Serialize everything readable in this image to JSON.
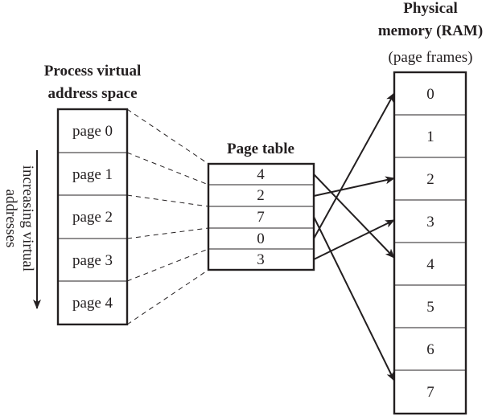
{
  "virtual_space": {
    "title_line1": "Process virtual",
    "title_line2": "address space",
    "pages": [
      "page 0",
      "page 1",
      "page 2",
      "page 3",
      "page 4"
    ],
    "axis_label_line1": "increasing virtual",
    "axis_label_line2": "addresses"
  },
  "page_table": {
    "title": "Page table",
    "entries": [
      "4",
      "2",
      "7",
      "0",
      "3"
    ]
  },
  "physical_memory": {
    "title_line1": "Physical",
    "title_line2": "memory (RAM)",
    "subtitle": "(page frames)",
    "frames": [
      "0",
      "1",
      "2",
      "3",
      "4",
      "5",
      "6",
      "7"
    ]
  }
}
